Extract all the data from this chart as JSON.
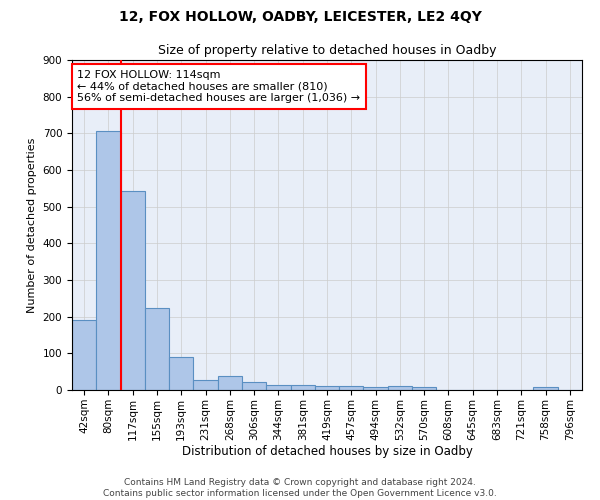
{
  "title1": "12, FOX HOLLOW, OADBY, LEICESTER, LE2 4QY",
  "title2": "Size of property relative to detached houses in Oadby",
  "xlabel": "Distribution of detached houses by size in Oadby",
  "ylabel": "Number of detached properties",
  "categories": [
    "42sqm",
    "80sqm",
    "117sqm",
    "155sqm",
    "193sqm",
    "231sqm",
    "268sqm",
    "306sqm",
    "344sqm",
    "381sqm",
    "419sqm",
    "457sqm",
    "494sqm",
    "532sqm",
    "570sqm",
    "608sqm",
    "645sqm",
    "683sqm",
    "721sqm",
    "758sqm",
    "796sqm"
  ],
  "values": [
    190,
    707,
    543,
    224,
    91,
    27,
    37,
    23,
    13,
    13,
    12,
    11,
    9,
    10,
    7,
    0,
    0,
    0,
    0,
    9,
    0
  ],
  "bar_color": "#aec6e8",
  "bar_edge_color": "#5a8fc2",
  "vline_color": "red",
  "annotation_text": "12 FOX HOLLOW: 114sqm\n← 44% of detached houses are smaller (810)\n56% of semi-detached houses are larger (1,036) →",
  "annotation_box_color": "white",
  "annotation_box_edge_color": "red",
  "ylim": [
    0,
    900
  ],
  "yticks": [
    0,
    100,
    200,
    300,
    400,
    500,
    600,
    700,
    800,
    900
  ],
  "grid_color": "#cccccc",
  "background_color": "#e8eef8",
  "footer": "Contains HM Land Registry data © Crown copyright and database right 2024.\nContains public sector information licensed under the Open Government Licence v3.0.",
  "title1_fontsize": 10,
  "title2_fontsize": 9,
  "xlabel_fontsize": 8.5,
  "ylabel_fontsize": 8,
  "tick_fontsize": 7.5,
  "annotation_fontsize": 8,
  "footer_fontsize": 6.5
}
